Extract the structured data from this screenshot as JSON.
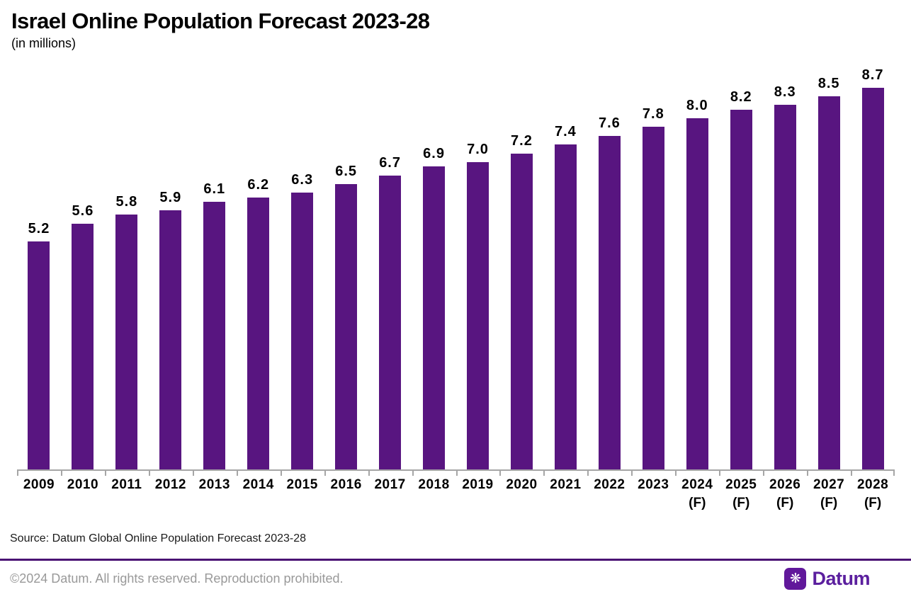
{
  "header": {
    "title": "Israel Online Population Forecast 2023-28",
    "subtitle": "(in millions)"
  },
  "chart_data": {
    "type": "bar",
    "title": "Israel Online Population Forecast 2023-28",
    "subtitle": "(in millions)",
    "categories": [
      "2009",
      "2010",
      "2011",
      "2012",
      "2013",
      "2014",
      "2015",
      "2016",
      "2017",
      "2018",
      "2019",
      "2020",
      "2021",
      "2022",
      "2023",
      "2024",
      "2025",
      "2026",
      "2027",
      "2028"
    ],
    "sublabels": [
      "",
      "",
      "",
      "",
      "",
      "",
      "",
      "",
      "",
      "",
      "",
      "",
      "",
      "",
      "",
      "(F)",
      "(F)",
      "(F)",
      "(F)",
      "(F)"
    ],
    "values": [
      5.2,
      5.6,
      5.8,
      5.9,
      6.1,
      6.2,
      6.3,
      6.5,
      6.7,
      6.9,
      7.0,
      7.2,
      7.4,
      7.6,
      7.8,
      8.0,
      8.2,
      8.3,
      8.5,
      8.7
    ],
    "value_labels": true,
    "xlabel": "",
    "ylabel": "",
    "ylim": [
      0,
      9
    ],
    "grid": false,
    "legend": "none",
    "bar_color": "#581580",
    "axis_color": "#a6a6a6"
  },
  "footer": {
    "source": "Source: Datum Global Online Population Forecast 2023-28",
    "copyright": "©2024 Datum. All rights reserved. Reproduction prohibited.",
    "logo": {
      "icon": "❋",
      "text": "Datum"
    }
  },
  "colors": {
    "bar": "#581580",
    "axis": "#a6a6a6",
    "divider": "#4a1173",
    "copyright_text": "#999999",
    "logo_purple": "#5b1f9e"
  }
}
